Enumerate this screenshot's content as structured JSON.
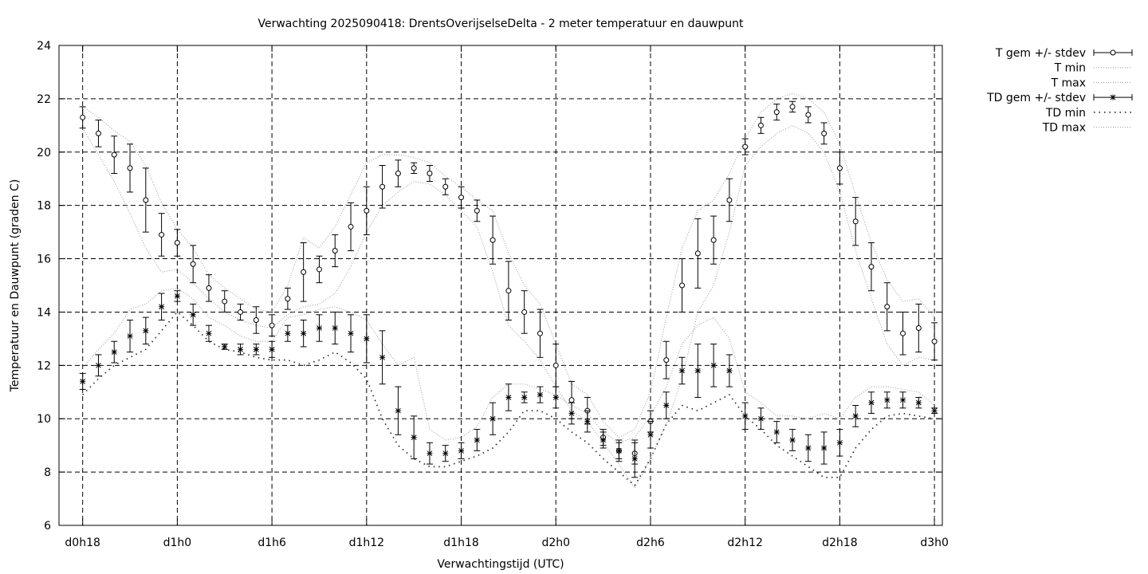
{
  "chart_data": {
    "type": "line",
    "title": "Verwachting 2025090418: DrentsOverijselseDelta - 2 meter temperatuur en dauwpunt",
    "xlabel": "Verwachtingstijd (UTC)",
    "ylabel": "Temperatuur en Dauwpunt (graden C)",
    "xlim": [
      -1.5,
      54.5
    ],
    "ylim": [
      6,
      24
    ],
    "x_unit": "hours since d0h18",
    "x_ticks": [
      {
        "x": 0,
        "label": "d0h18"
      },
      {
        "x": 6,
        "label": "d1h0"
      },
      {
        "x": 12,
        "label": "d1h6"
      },
      {
        "x": 18,
        "label": "d1h12"
      },
      {
        "x": 24,
        "label": "d1h18"
      },
      {
        "x": 30,
        "label": "d2h0"
      },
      {
        "x": 36,
        "label": "d2h6"
      },
      {
        "x": 42,
        "label": "d2h12"
      },
      {
        "x": 48,
        "label": "d2h18"
      },
      {
        "x": 54,
        "label": "d3h0"
      }
    ],
    "y_ticks": [
      6,
      8,
      10,
      12,
      14,
      16,
      18,
      20,
      22,
      24
    ],
    "grid": true,
    "legend_position": "outside-right-top",
    "x": [
      0,
      1,
      2,
      3,
      4,
      5,
      6,
      7,
      8,
      9,
      10,
      11,
      12,
      13,
      14,
      15,
      16,
      17,
      18,
      19,
      20,
      21,
      22,
      23,
      24,
      25,
      26,
      27,
      28,
      29,
      30,
      31,
      32,
      33,
      34,
      35,
      36,
      37,
      38,
      39,
      40,
      41,
      42,
      43,
      44,
      45,
      46,
      47,
      48,
      49,
      50,
      51,
      52,
      53,
      54
    ],
    "series": [
      {
        "name": "T gem +/- stdev",
        "marker": "circle",
        "values": [
          21.3,
          20.7,
          19.9,
          19.4,
          18.2,
          16.9,
          16.6,
          15.8,
          14.9,
          14.4,
          14.0,
          13.7,
          13.5,
          14.5,
          15.5,
          15.6,
          16.3,
          17.2,
          17.8,
          18.7,
          19.2,
          19.4,
          19.2,
          18.7,
          18.3,
          17.8,
          16.7,
          14.8,
          14.0,
          13.2,
          12.0,
          10.7,
          10.3,
          9.3,
          8.8,
          8.7,
          9.9,
          12.2,
          15.0,
          16.2,
          16.7,
          18.2,
          20.2,
          21.0,
          21.5,
          21.7,
          21.4,
          20.7,
          19.4,
          17.4,
          15.7,
          14.2,
          13.2,
          13.4,
          12.9
        ],
        "stdev": [
          0.4,
          0.5,
          0.7,
          0.9,
          1.2,
          0.8,
          0.5,
          0.7,
          0.5,
          0.4,
          0.3,
          0.5,
          0.4,
          0.4,
          1.1,
          0.5,
          0.6,
          0.9,
          0.9,
          0.8,
          0.5,
          0.2,
          0.3,
          0.3,
          0.4,
          0.4,
          0.9,
          1.1,
          0.8,
          0.9,
          0.8,
          0.7,
          0.5,
          0.3,
          0.4,
          0.4,
          0.4,
          0.7,
          1.0,
          1.3,
          0.9,
          0.8,
          0.3,
          0.3,
          0.3,
          0.2,
          0.3,
          0.4,
          0.6,
          0.9,
          0.9,
          0.9,
          0.8,
          0.9,
          0.7
        ]
      },
      {
        "name": "T min",
        "values": [
          20.9,
          19.9,
          18.9,
          17.7,
          16.4,
          15.5,
          15.6,
          15.1,
          14.5,
          14.0,
          13.7,
          13.5,
          13.4,
          13.9,
          14.2,
          14.3,
          14.7,
          15.7,
          17.0,
          18.0,
          18.5,
          18.9,
          18.8,
          18.4,
          17.8,
          17.2,
          15.5,
          13.5,
          12.9,
          12.2,
          11.2,
          10.3,
          9.9,
          9.1,
          8.3,
          7.4,
          8.5,
          9.8,
          11.5,
          14.0,
          15.0,
          17.0,
          19.5,
          20.2,
          20.7,
          21.0,
          20.7,
          20.0,
          18.5,
          16.3,
          14.5,
          12.8,
          12.0,
          12.3,
          12.2
        ]
      },
      {
        "name": "T max",
        "values": [
          21.7,
          21.3,
          20.8,
          20.4,
          19.5,
          18.1,
          17.1,
          16.4,
          15.4,
          14.9,
          14.5,
          14.1,
          14.0,
          15.0,
          16.8,
          16.4,
          17.2,
          18.4,
          19.6,
          19.9,
          19.9,
          19.8,
          19.6,
          19.1,
          18.7,
          18.2,
          17.8,
          16.2,
          15.0,
          14.3,
          12.8,
          11.3,
          10.9,
          9.9,
          9.3,
          9.6,
          11.0,
          13.8,
          16.4,
          17.8,
          18.2,
          19.2,
          20.5,
          21.5,
          22.0,
          22.2,
          22.0,
          21.5,
          20.3,
          18.4,
          16.6,
          15.2,
          14.4,
          14.5,
          13.8
        ]
      },
      {
        "name": "TD gem +/- stdev",
        "marker": "star",
        "values": [
          11.4,
          12.0,
          12.5,
          13.1,
          13.3,
          14.2,
          14.6,
          13.9,
          13.2,
          12.7,
          12.6,
          12.6,
          12.6,
          13.2,
          13.2,
          13.4,
          13.4,
          13.2,
          13.0,
          12.3,
          10.3,
          9.3,
          8.7,
          8.7,
          8.8,
          9.2,
          10.0,
          10.8,
          10.8,
          10.9,
          10.8,
          10.2,
          9.9,
          9.2,
          8.8,
          8.5,
          9.4,
          10.5,
          11.8,
          11.8,
          12.0,
          11.8,
          10.1,
          10.0,
          9.5,
          9.2,
          8.9,
          8.9,
          9.1,
          10.1,
          10.6,
          10.7,
          10.7,
          10.6,
          10.3
        ],
        "stdev": [
          0.3,
          0.4,
          0.4,
          0.6,
          0.5,
          0.5,
          0.2,
          0.4,
          0.3,
          0.1,
          0.2,
          0.2,
          0.3,
          0.3,
          0.5,
          0.5,
          0.6,
          0.7,
          0.9,
          1.0,
          0.9,
          0.8,
          0.4,
          0.3,
          0.3,
          0.4,
          0.6,
          0.5,
          0.2,
          0.3,
          0.4,
          0.4,
          0.4,
          0.3,
          0.3,
          0.7,
          0.5,
          0.5,
          0.5,
          1.0,
          0.8,
          0.6,
          0.5,
          0.4,
          0.4,
          0.4,
          0.5,
          0.6,
          0.5,
          0.4,
          0.4,
          0.3,
          0.3,
          0.2,
          0.1
        ]
      },
      {
        "name": "TD min",
        "values": [
          10.9,
          11.5,
          12.0,
          12.3,
          12.6,
          13.3,
          14.0,
          13.5,
          12.9,
          12.6,
          12.5,
          12.3,
          12.2,
          12.2,
          12.0,
          12.2,
          12.5,
          12.1,
          11.5,
          10.0,
          9.0,
          8.5,
          8.2,
          8.2,
          8.4,
          8.6,
          8.9,
          9.5,
          10.3,
          10.3,
          10.0,
          9.5,
          9.1,
          8.5,
          8.0,
          7.5,
          8.5,
          9.8,
          10.5,
          10.3,
          10.6,
          10.9,
          10.1,
          9.6,
          9.0,
          8.6,
          8.2,
          7.8,
          7.8,
          8.9,
          9.6,
          10.1,
          10.2,
          10.1,
          10.0
        ]
      },
      {
        "name": "TD max",
        "values": [
          11.9,
          12.6,
          13.2,
          14.1,
          14.3,
          14.8,
          14.9,
          14.5,
          13.8,
          13.5,
          13.1,
          12.9,
          12.9,
          13.8,
          13.9,
          14.1,
          14.2,
          14.0,
          13.7,
          12.8,
          12.0,
          12.3,
          9.6,
          9.2,
          9.3,
          9.7,
          10.8,
          11.3,
          11.3,
          11.1,
          10.9,
          10.5,
          10.2,
          9.5,
          9.1,
          9.3,
          10.1,
          11.2,
          12.8,
          13.5,
          13.8,
          13.0,
          11.0,
          10.6,
          10.1,
          10.1,
          10.0,
          10.2,
          10.0,
          10.8,
          11.2,
          11.2,
          11.1,
          11.0,
          10.5
        ]
      }
    ]
  }
}
